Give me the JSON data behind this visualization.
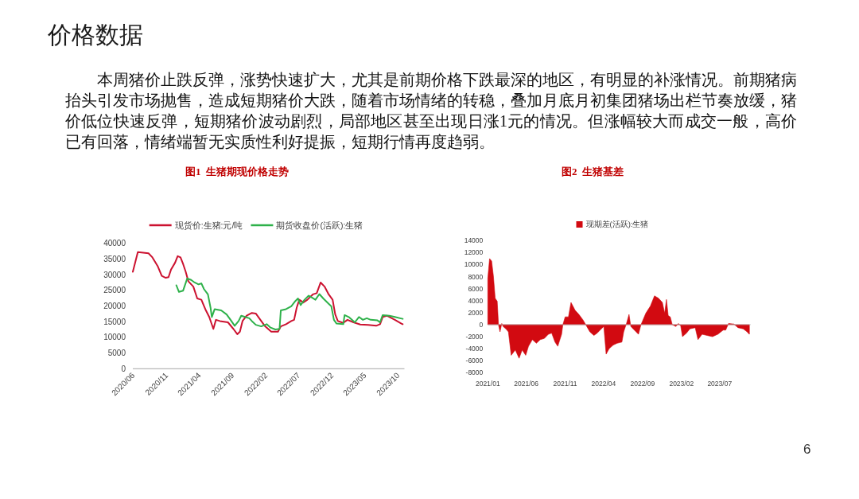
{
  "chart_data": [
    {
      "type": "other",
      "title": "价格数据",
      "annotations": [
        "本周猪价止跌反弹，涨势快速扩大，尤其是前期价格下跌最深的地区，有明显的补涨情况。前期猪病抬头引发市场抛售，造成短期猪价大跌，随着市场情绪的转稳，叠加月底月初集团猪场出栏节奏放缓，猪价低位快速反弹，短期猪价波动剧烈，局部地区甚至出现日涨1元的情况。但涨幅较大而成交一般，高价已有回落，情绪端暂无实质性利好提振，短期行情再度趋弱。",
        "6"
      ]
    },
    {
      "type": "line",
      "title": "图1  生猪期现价格走势",
      "legend": "top",
      "xlim": [
        "2020-06-01",
        "2023-11-01"
      ],
      "xticks": [
        {
          "value": "2020-06",
          "label": "2020/06"
        },
        {
          "value": "2020-11",
          "label": "2020/11"
        },
        {
          "value": "2021-04",
          "label": "2021/04"
        },
        {
          "value": "2021-09",
          "label": "2021/09"
        },
        {
          "value": "2022-02",
          "label": "2022/02"
        },
        {
          "value": "2022-07",
          "label": "2022/07"
        },
        {
          "value": "2022-12",
          "label": "2022/12"
        },
        {
          "value": "2023-05",
          "label": "2023/05"
        },
        {
          "value": "2023-10",
          "label": "2023/10"
        }
      ],
      "ylim": [
        0,
        40000
      ],
      "yticks": [
        0,
        5000,
        10000,
        15000,
        20000,
        25000,
        30000,
        35000,
        40000
      ],
      "series": [
        {
          "name": "现货价:生猪:元/吨",
          "color": "#cc1230",
          "x": [
            "2020-06-01",
            "2020-06-24",
            "2020-08-12",
            "2020-08-30",
            "2020-09-24",
            "2020-10-12",
            "2020-10-30",
            "2020-11-12",
            "2020-11-24",
            "2020-12-12",
            "2020-12-24",
            "2021-01-06",
            "2021-01-18",
            "2021-01-30",
            "2021-02-11",
            "2021-03-06",
            "2021-03-24",
            "2021-04-12",
            "2021-04-30",
            "2021-05-18",
            "2021-06-06",
            "2021-06-18",
            "2021-07-06",
            "2021-08-12",
            "2021-09-06",
            "2021-09-24",
            "2021-10-06",
            "2021-10-18",
            "2021-11-06",
            "2021-11-30",
            "2021-12-18",
            "2022-01-12",
            "2022-01-30",
            "2022-02-27",
            "2022-03-30",
            "2022-04-12",
            "2022-05-06",
            "2022-05-30",
            "2022-06-12",
            "2022-06-24",
            "2022-07-06",
            "2022-07-24",
            "2022-08-12",
            "2022-09-06",
            "2022-09-24",
            "2022-10-12",
            "2022-10-30",
            "2022-11-18",
            "2022-12-06",
            "2022-12-18",
            "2022-12-30",
            "2023-01-24",
            "2023-02-12",
            "2023-03-12",
            "2023-04-12",
            "2023-05-18",
            "2023-06-24",
            "2023-07-12",
            "2023-07-24",
            "2023-08-12",
            "2023-09-18",
            "2023-10-18",
            "2023-10-24"
          ],
          "values": [
            30900,
            37200,
            36800,
            35500,
            32600,
            29600,
            29000,
            29200,
            31700,
            33800,
            35900,
            35500,
            33400,
            30900,
            27900,
            26200,
            22400,
            22000,
            19000,
            16500,
            12700,
            15600,
            15200,
            14800,
            12700,
            11000,
            11800,
            15200,
            16900,
            17800,
            17600,
            15200,
            13500,
            11800,
            11800,
            13500,
            14200,
            15200,
            15600,
            19500,
            22000,
            21100,
            22000,
            23700,
            24100,
            27500,
            26200,
            23700,
            22000,
            17300,
            15200,
            14600,
            15600,
            14800,
            14100,
            14000,
            13700,
            14200,
            16500,
            16900,
            15600,
            14400,
            14200
          ]
        },
        {
          "name": "期货收盘价(活跃):生猪",
          "color": "#2eb14a",
          "x": [
            "2020-12-18",
            "2020-12-30",
            "2021-01-18",
            "2021-02-06",
            "2021-02-24",
            "2021-03-12",
            "2021-03-30",
            "2021-04-12",
            "2021-04-24",
            "2021-05-12",
            "2021-05-24",
            "2021-05-30",
            "2021-06-12",
            "2021-07-12",
            "2021-08-06",
            "2021-08-24",
            "2021-09-12",
            "2021-09-30",
            "2021-10-12",
            "2021-10-30",
            "2021-11-18",
            "2021-11-30",
            "2021-12-18",
            "2022-01-12",
            "2022-02-06",
            "2022-02-24",
            "2022-03-18",
            "2022-04-06",
            "2022-04-12",
            "2022-05-06",
            "2022-05-30",
            "2022-06-18",
            "2022-06-30",
            "2022-07-12",
            "2022-07-30",
            "2022-08-18",
            "2022-08-30",
            "2022-09-18",
            "2022-10-06",
            "2022-10-24",
            "2022-11-18",
            "2022-11-30",
            "2022-12-12",
            "2022-12-24",
            "2023-01-24",
            "2023-01-30",
            "2023-02-18",
            "2023-03-18",
            "2023-04-06",
            "2023-04-24",
            "2023-05-12",
            "2023-05-30",
            "2023-06-30",
            "2023-07-12",
            "2023-07-24",
            "2023-08-24",
            "2023-09-18",
            "2023-10-12",
            "2023-10-24"
          ],
          "values": [
            26600,
            24500,
            24900,
            28800,
            28300,
            27500,
            26900,
            27200,
            25400,
            23700,
            19500,
            16500,
            19000,
            18600,
            17300,
            15600,
            13700,
            15200,
            16900,
            16500,
            16100,
            15200,
            14000,
            13500,
            14200,
            13100,
            12500,
            12700,
            18600,
            19000,
            19900,
            21600,
            22400,
            20300,
            22000,
            23300,
            22800,
            22000,
            23800,
            22400,
            20700,
            19900,
            15600,
            14400,
            14200,
            17100,
            16500,
            14800,
            16500,
            15600,
            16100,
            15600,
            15400,
            14800,
            17100,
            16900,
            16500,
            16100,
            15900
          ]
        }
      ]
    },
    {
      "type": "area",
      "title": "图2  生猪基差",
      "legend": "top",
      "xlim": [
        "2021-01-01",
        "2023-10-31"
      ],
      "xticks": [
        {
          "value": "2021-01",
          "label": "2021/01"
        },
        {
          "value": "2021-06",
          "label": "2021/06"
        },
        {
          "value": "2021-11",
          "label": "2021/11"
        },
        {
          "value": "2022-04",
          "label": "2022/04"
        },
        {
          "value": "2022-09",
          "label": "2022/09"
        },
        {
          "value": "2023-02",
          "label": "2023/02"
        },
        {
          "value": "2023-07",
          "label": "2023/07"
        }
      ],
      "ylim": [
        -8000,
        14000
      ],
      "yticks": [
        -8000,
        -6000,
        -4000,
        -2000,
        0,
        2000,
        4000,
        6000,
        8000,
        10000,
        12000,
        14000
      ],
      "series": [
        {
          "name": "现期差(活跃):生猪",
          "color": "#d20a11",
          "x": [
            "2021-01-01",
            "2021-01-08",
            "2021-01-16",
            "2021-01-23",
            "2021-01-30",
            "2021-02-07",
            "2021-02-12",
            "2021-02-18",
            "2021-02-25",
            "2021-03-02",
            "2021-03-13",
            "2021-03-23",
            "2021-04-03",
            "2021-04-19",
            "2021-05-04",
            "2021-05-16",
            "2021-05-30",
            "2021-06-10",
            "2021-06-25",
            "2021-07-11",
            "2021-07-26",
            "2021-08-11",
            "2021-08-27",
            "2021-09-09",
            "2021-09-22",
            "2021-10-03",
            "2021-10-18",
            "2021-10-23",
            "2021-11-01",
            "2021-11-14",
            "2021-11-24",
            "2021-12-10",
            "2021-12-25",
            "2022-01-10",
            "2022-01-21",
            "2022-02-06",
            "2022-02-22",
            "2022-03-07",
            "2022-03-23",
            "2022-04-02",
            "2022-04-11",
            "2022-04-23",
            "2022-05-09",
            "2022-05-24",
            "2022-06-12",
            "2022-06-19",
            "2022-06-30",
            "2022-07-10",
            "2022-07-17",
            "2022-07-26",
            "2022-08-16",
            "2022-08-26",
            "2022-09-14",
            "2022-10-02",
            "2022-10-18",
            "2022-11-03",
            "2022-11-18",
            "2022-11-27",
            "2022-12-04",
            "2022-12-11",
            "2022-12-19",
            "2022-12-27",
            "2023-01-10",
            "2023-01-20",
            "2023-01-29",
            "2023-02-05",
            "2023-02-21",
            "2023-03-06",
            "2023-03-27",
            "2023-04-07",
            "2023-04-23",
            "2023-05-13",
            "2023-06-03",
            "2023-06-24",
            "2023-07-15",
            "2023-07-25",
            "2023-08-05",
            "2023-08-26",
            "2023-09-11",
            "2023-10-02",
            "2023-10-17",
            "2023-10-26"
          ],
          "values": [
            7700,
            11000,
            10600,
            8100,
            4400,
            3900,
            0,
            -1200,
            200,
            -300,
            -700,
            -1200,
            -5100,
            -4200,
            -5600,
            -4200,
            -5100,
            -3600,
            -2500,
            -3100,
            -2500,
            -2300,
            -1600,
            -1400,
            -2900,
            -3600,
            -1600,
            0,
            1300,
            1300,
            3700,
            2400,
            1700,
            800,
            0,
            -1200,
            -1800,
            -1400,
            -700,
            -300,
            -4900,
            -4000,
            -3400,
            -3100,
            -2900,
            -1200,
            200,
            1700,
            -300,
            -700,
            -1600,
            0,
            1900,
            3100,
            4800,
            4400,
            3700,
            1900,
            4200,
            1500,
            1300,
            0,
            -300,
            200,
            -200,
            -2000,
            -1400,
            -700,
            -500,
            -2500,
            -1600,
            -1800,
            -2000,
            -1600,
            -900,
            -900,
            200,
            100,
            -500,
            -700,
            -1200,
            -1600
          ]
        }
      ]
    }
  ]
}
